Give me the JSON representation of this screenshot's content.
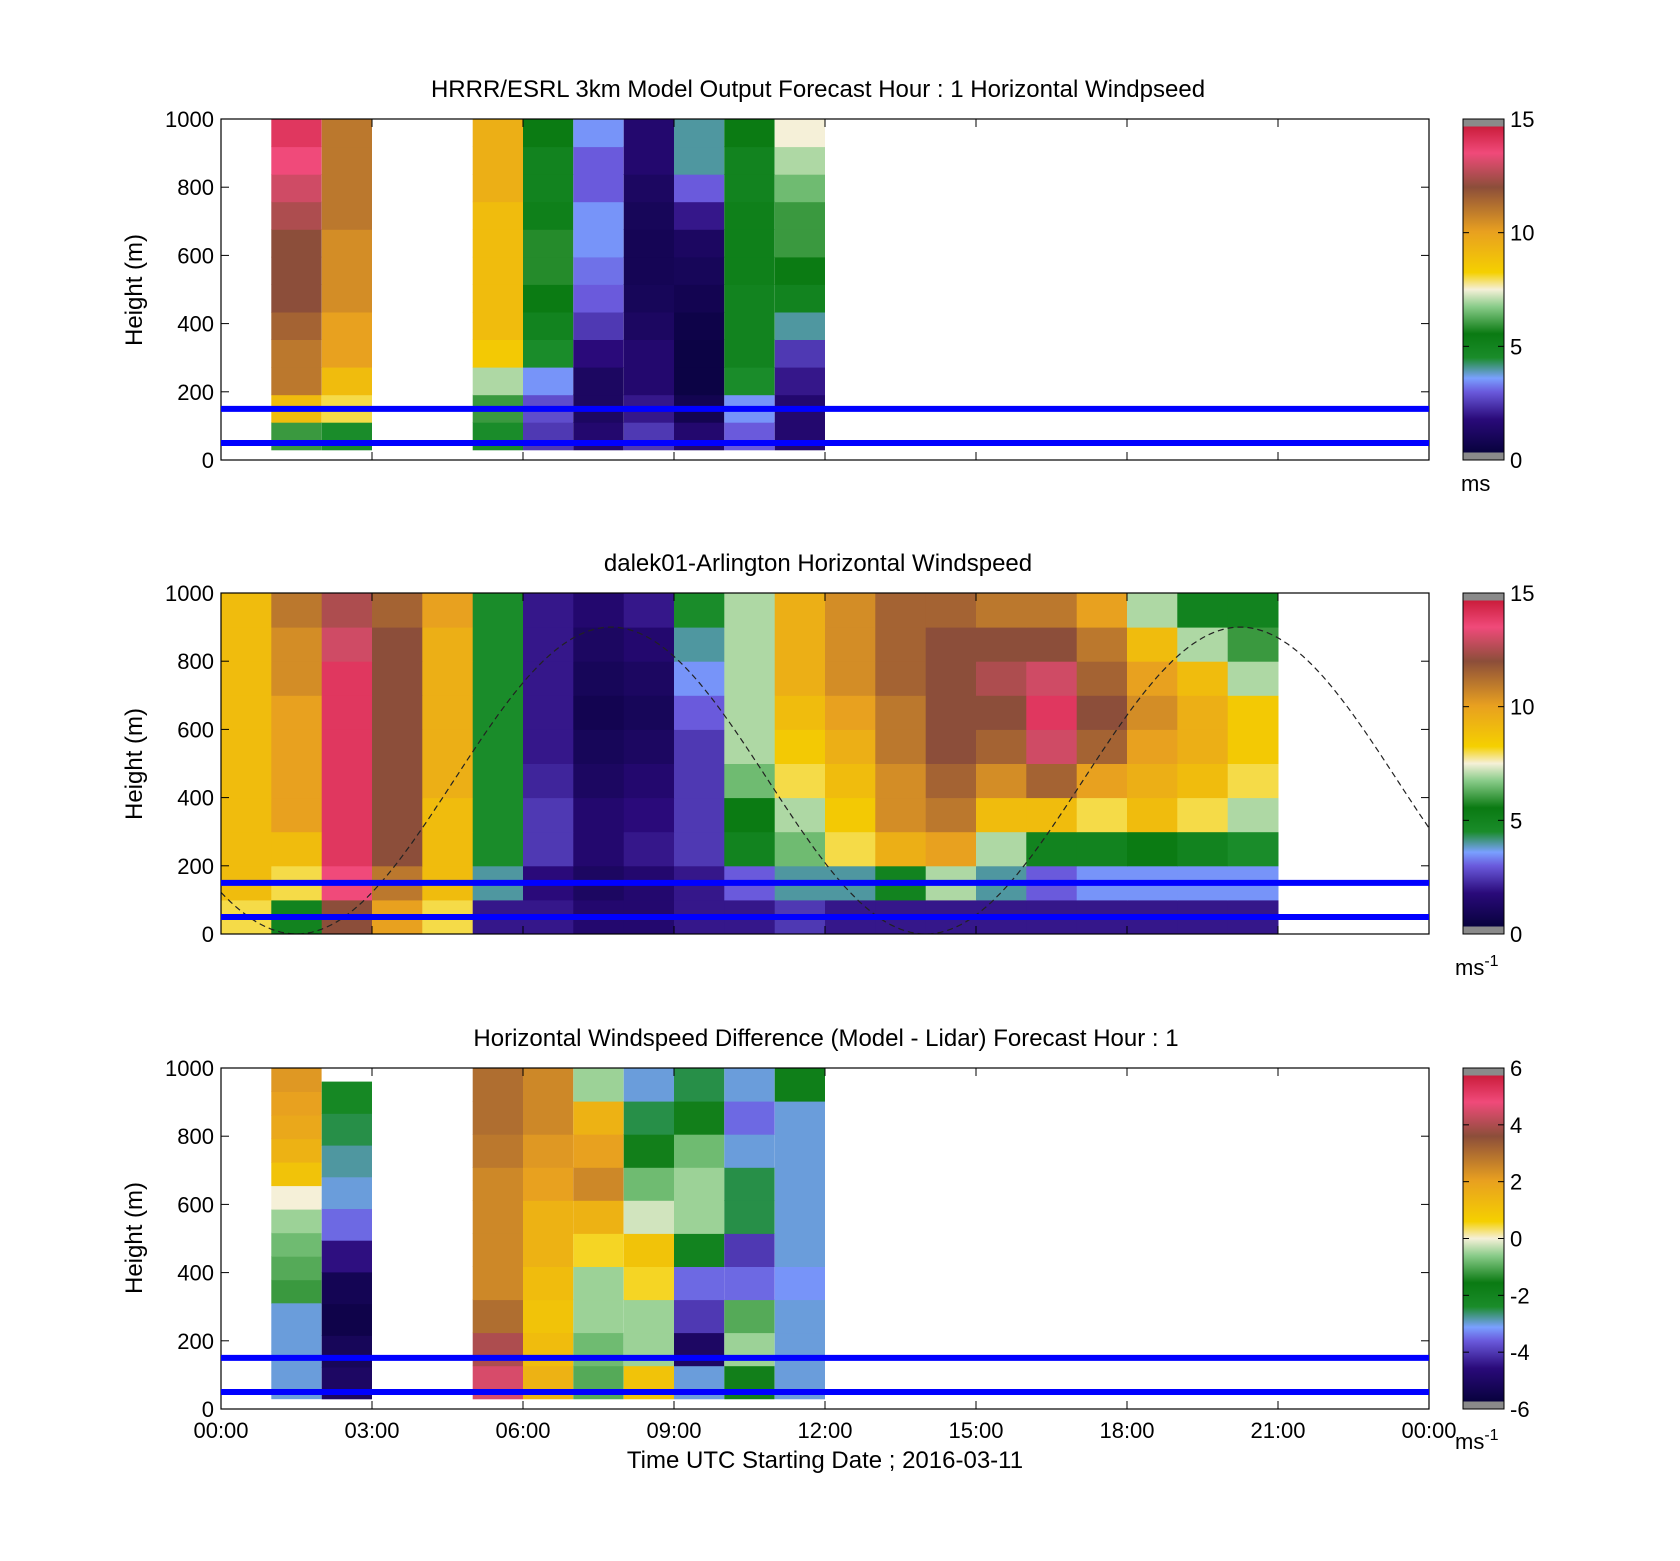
{
  "chart_data": [
    {
      "type": "heatmap",
      "title": "HRRR/ESRL 3km Model Output   Forecast Hour : 1 Horizontal Windpseed",
      "ylabel": "Height (m)",
      "xlabel": "",
      "xlim": [
        0,
        24
      ],
      "ylim": [
        0,
        1000
      ],
      "yticks": [
        "0",
        "200",
        "400",
        "600",
        "800",
        "1000"
      ],
      "xticks": [],
      "colorbar": {
        "ticks": [
          "0",
          "5",
          "10",
          "15"
        ],
        "unit": "ms",
        "unit_sup": "",
        "range": [
          0,
          15
        ],
        "palette": "wind"
      },
      "reference_lines_m": [
        50,
        150
      ],
      "reference_line_color": "#0000ff",
      "columns": [
        {
          "t": 1,
          "dt": 1,
          "zmin": 30,
          "zmax": 1000,
          "v": [
            6,
            9,
            11,
            11,
            11.5,
            12,
            12,
            12,
            12.5,
            13,
            13.5,
            14
          ]
        },
        {
          "t": 2,
          "dt": 1,
          "zmin": 30,
          "zmax": 1000,
          "v": [
            4.5,
            8,
            9,
            10,
            10,
            10.5,
            10.5,
            10.5,
            11,
            11,
            11,
            11
          ]
        },
        {
          "t": 5,
          "dt": 1,
          "zmin": 30,
          "zmax": 1000,
          "v": [
            4.5,
            6,
            7,
            8.5,
            9,
            9,
            9,
            9,
            9,
            9.5,
            9.5,
            9.5
          ]
        },
        {
          "t": 6,
          "dt": 1,
          "zmin": 30,
          "zmax": 1000,
          "v": [
            2.5,
            2.8,
            3.5,
            4.5,
            5,
            5.5,
            5.8,
            5.8,
            5.2,
            5,
            5,
            5.5
          ]
        },
        {
          "t": 7,
          "dt": 1,
          "zmin": 30,
          "zmax": 1000,
          "v": [
            1.5,
            1.2,
            1.2,
            1.8,
            2.5,
            3,
            3.2,
            3.5,
            3.5,
            3,
            3,
            3.5
          ]
        },
        {
          "t": 8,
          "dt": 1,
          "zmin": 30,
          "zmax": 1000,
          "v": [
            2.5,
            2,
            1.5,
            1.5,
            1.2,
            1,
            0.9,
            0.9,
            1,
            1.2,
            1.5,
            1.5
          ]
        },
        {
          "t": 9,
          "dt": 1,
          "zmin": 30,
          "zmax": 1000,
          "v": [
            1.5,
            0.8,
            0.5,
            0.5,
            0.6,
            0.8,
            1,
            1.2,
            2,
            3,
            4,
            4
          ]
        },
        {
          "t": 10,
          "dt": 1,
          "zmin": 30,
          "zmax": 1000,
          "v": [
            3,
            3.5,
            4.5,
            5,
            5,
            5,
            5.2,
            5.2,
            5.2,
            5,
            5,
            5.5
          ]
        },
        {
          "t": 11,
          "dt": 1,
          "zmin": 30,
          "zmax": 1000,
          "v": [
            1.5,
            1.5,
            2,
            2.5,
            4,
            5,
            5.5,
            6,
            6,
            6.5,
            7,
            7.5
          ]
        }
      ]
    },
    {
      "type": "heatmap",
      "title": "dalek01-Arlington  Horizontal Windspeed",
      "ylabel": "Height (m)",
      "xlabel": "",
      "xlim": [
        0,
        24
      ],
      "ylim": [
        0,
        1000
      ],
      "yticks": [
        "0",
        "200",
        "400",
        "600",
        "800",
        "1000"
      ],
      "xticks": [],
      "colorbar": {
        "ticks": [
          "0",
          "5",
          "10",
          "15"
        ],
        "unit": "ms",
        "unit_sup": "-1",
        "range": [
          0,
          15
        ],
        "palette": "wind"
      },
      "reference_lines_m": [
        50,
        150
      ],
      "reference_line_color": "#0000ff",
      "dashed_curve": "sinusoid, peak ~900 m near 20:15 UTC, minima near 02:00 and 14:30 UTC",
      "grid": {
        "t_start": 0,
        "t_step": 1,
        "t_count": 21,
        "z_start": 0,
        "z_step": 100,
        "z_count": 10,
        "rows_low_to_high": [
          [
            8,
            5,
            12,
            10,
            8,
            2,
            2,
            1.5,
            1.5,
            2,
            2,
            2.5,
            2,
            2,
            2,
            2,
            2,
            2,
            2,
            2,
            2
          ],
          [
            9,
            8,
            13.5,
            11,
            9,
            4,
            1.8,
            1.2,
            1.5,
            2,
            3,
            4,
            4,
            5,
            7,
            4,
            3,
            3.5,
            3.5,
            3.5,
            3.5
          ],
          [
            9,
            9,
            14,
            12,
            9,
            4.5,
            2.5,
            1.5,
            2,
            2.5,
            5,
            6.5,
            8,
            9.5,
            10,
            7,
            5,
            5,
            5.5,
            5,
            4.5
          ],
          [
            9,
            10,
            14,
            12,
            9,
            4.5,
            2.5,
            1.5,
            1.8,
            2.5,
            5.5,
            7,
            8.5,
            10.5,
            11,
            9,
            9,
            8,
            9,
            8,
            7
          ],
          [
            9,
            10,
            14,
            12,
            9.5,
            4.5,
            2.2,
            1.2,
            1.5,
            2.5,
            6.5,
            8,
            9,
            10.5,
            11.5,
            10.5,
            11.5,
            10,
            9.5,
            9,
            8
          ],
          [
            9,
            10,
            14,
            12,
            9.5,
            4.5,
            2,
            1,
            1.2,
            2.5,
            7,
            8.5,
            9.5,
            11,
            12,
            11.5,
            13,
            11.5,
            10,
            9.5,
            8.5
          ],
          [
            9,
            10,
            14,
            12,
            9.5,
            4.5,
            2,
            0.8,
            1,
            3,
            7,
            9,
            10,
            11,
            12,
            12,
            14,
            12,
            10.5,
            9.5,
            8.5
          ],
          [
            9,
            10.5,
            14,
            12,
            9.5,
            4.5,
            2,
            1,
            1.2,
            3.5,
            7,
            9.5,
            10.5,
            11.5,
            12,
            12.5,
            13,
            11.5,
            10,
            9,
            7
          ],
          [
            9,
            10.5,
            13,
            12,
            9.5,
            4.5,
            2,
            1.2,
            1.5,
            4,
            7,
            9.5,
            10.5,
            11.5,
            12,
            12,
            12,
            11,
            9,
            7,
            6
          ],
          [
            9,
            11,
            12.5,
            11.5,
            10,
            4.5,
            2,
            1.5,
            2,
            4.5,
            7,
            9.5,
            10.5,
            11.5,
            11.5,
            11,
            11,
            10,
            7,
            5,
            5
          ]
        ]
      }
    },
    {
      "type": "heatmap",
      "title": "Horizontal Windspeed Difference (Model - Lidar) Forecast Hour : 1",
      "ylabel": "Height (m)",
      "xlabel": "Time UTC  Starting Date ; 2016-03-11",
      "xlim": [
        0,
        24
      ],
      "ylim": [
        0,
        1000
      ],
      "yticks": [
        "0",
        "200",
        "400",
        "600",
        "800",
        "1000"
      ],
      "xticks": [
        "00:00",
        "03:00",
        "06:00",
        "09:00",
        "12:00",
        "15:00",
        "18:00",
        "21:00",
        "00:00"
      ],
      "colorbar": {
        "ticks": [
          "-6",
          "-4",
          "-2",
          "0",
          "2",
          "4",
          "6"
        ],
        "unit": "ms",
        "unit_sup": "-1",
        "range": [
          -6,
          6
        ],
        "palette": "diff"
      },
      "reference_lines_m": [
        50,
        150
      ],
      "reference_line_color": "#0000ff",
      "columns": [
        {
          "t": 1,
          "dt": 1,
          "zmin": 310,
          "zmax": 1000,
          "v": [
            -1.2,
            -1,
            -0.8,
            -0.5,
            0,
            1,
            1.5,
            1.8,
            2,
            2.2
          ]
        },
        {
          "t": 1,
          "dt": 1,
          "zmin": 30,
          "zmax": 310,
          "v": [
            -3,
            -3
          ]
        },
        {
          "t": 2,
          "dt": 1,
          "zmin": 30,
          "zmax": 960,
          "v": [
            -5,
            -5.2,
            -5.5,
            -5.3,
            -4.5,
            -3.5,
            -3,
            -2.8,
            -2.5,
            -2.2
          ]
        },
        {
          "t": 5,
          "dt": 1,
          "zmin": 30,
          "zmax": 1000,
          "v": [
            4.5,
            4,
            3,
            2.5,
            2.5,
            2.5,
            2.5,
            2.8,
            3,
            3
          ]
        },
        {
          "t": 6,
          "dt": 1,
          "zmin": 30,
          "zmax": 1000,
          "v": [
            1.5,
            1.2,
            1,
            1.2,
            1.5,
            1.5,
            2,
            2.2,
            2.5,
            2.5
          ]
        },
        {
          "t": 7,
          "dt": 1,
          "zmin": 30,
          "zmax": 1000,
          "v": [
            -1,
            -0.8,
            -0.5,
            -0.5,
            0.5,
            1.5,
            2.5,
            2,
            1.5,
            -0.5
          ]
        },
        {
          "t": 8,
          "dt": 1,
          "zmin": 30,
          "zmax": 1000,
          "v": [
            1,
            -0.5,
            -0.5,
            0.5,
            1,
            -0.2,
            -0.8,
            -1.5,
            -2.5,
            -3
          ]
        },
        {
          "t": 9,
          "dt": 1,
          "zmin": 30,
          "zmax": 1000,
          "v": [
            -3,
            -5,
            -4,
            -3.5,
            -2,
            -0.5,
            -0.5,
            -0.8,
            -1.5,
            -2.5
          ]
        },
        {
          "t": 10,
          "dt": 1,
          "zmin": 30,
          "zmax": 1000,
          "v": [
            -1.5,
            -0.5,
            -1,
            -3.5,
            -4,
            -2.5,
            -2.5,
            -3,
            -3.5,
            -3
          ]
        },
        {
          "t": 11,
          "dt": 1,
          "zmin": 30,
          "zmax": 1000,
          "v": [
            -3,
            -3,
            -3,
            -3.2,
            -3,
            -3,
            -3,
            -3,
            -3,
            -1.8
          ]
        }
      ]
    }
  ]
}
